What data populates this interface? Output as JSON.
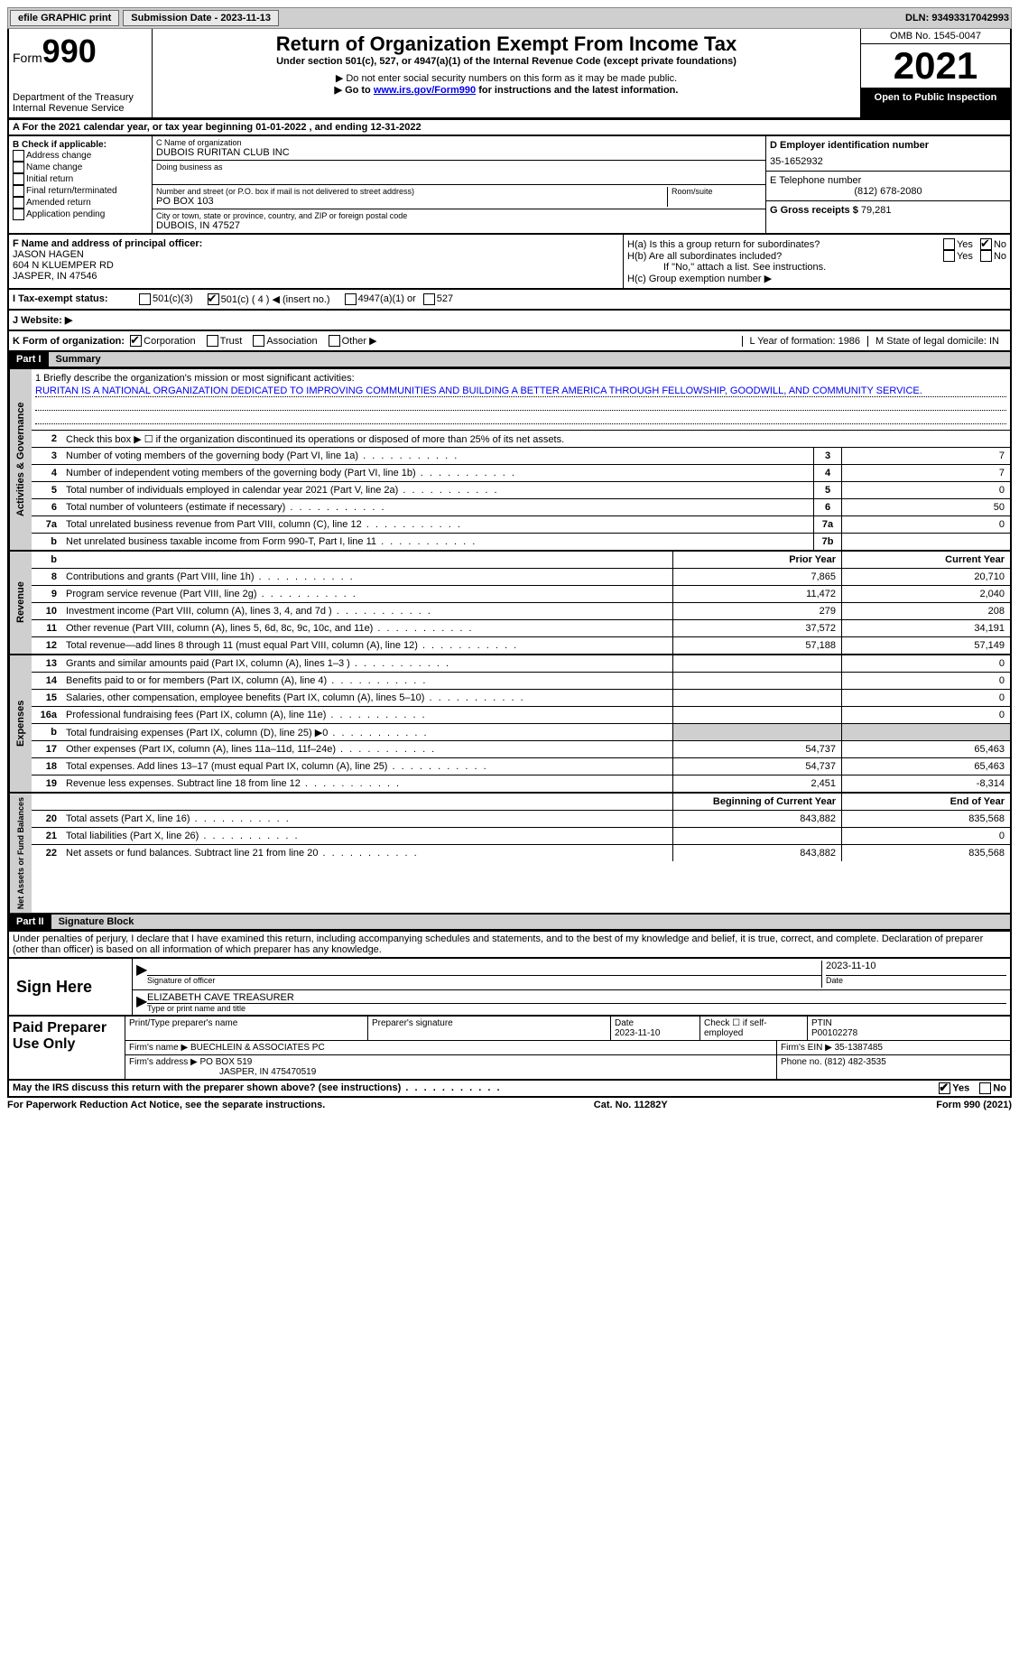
{
  "topbar": {
    "efile": "efile GRAPHIC print",
    "submission": "Submission Date - 2023-11-13",
    "dln": "DLN: 93493317042993"
  },
  "header": {
    "form": "Form",
    "num": "990",
    "title": "Return of Organization Exempt From Income Tax",
    "subtitle": "Under section 501(c), 527, or 4947(a)(1) of the Internal Revenue Code (except private foundations)",
    "note1": "▶ Do not enter social security numbers on this form as it may be made public.",
    "note2_pre": "▶ Go to ",
    "note2_link": "www.irs.gov/Form990",
    "note2_post": " for instructions and the latest information.",
    "dept": "Department of the Treasury\nInternal Revenue Service",
    "omb": "OMB No. 1545-0047",
    "year": "2021",
    "inspection": "Open to Public Inspection"
  },
  "rowA": "A For the 2021 calendar year, or tax year beginning 01-01-2022    , and ending 12-31-2022",
  "boxB": {
    "label": "B Check if applicable:",
    "opts": [
      "Address change",
      "Name change",
      "Initial return",
      "Final return/terminated",
      "Amended return",
      "Application pending"
    ]
  },
  "boxC": {
    "name_label": "C Name of organization",
    "name": "DUBOIS RURITAN CLUB INC",
    "dba_label": "Doing business as",
    "addr_label": "Number and street (or P.O. box if mail is not delivered to street address)",
    "addr": "PO BOX 103",
    "room_label": "Room/suite",
    "city_label": "City or town, state or province, country, and ZIP or foreign postal code",
    "city": "DUBOIS, IN  47527"
  },
  "boxD": {
    "d_label": "D Employer identification number",
    "d_val": "35-1652932",
    "e_label": "E Telephone number",
    "e_val": "(812) 678-2080",
    "g_label": "G Gross receipts $",
    "g_val": "79,281"
  },
  "boxF": {
    "label": "F Name and address of principal officer:",
    "name": "JASON HAGEN",
    "addr1": "604 N KLUEMPER RD",
    "addr2": "JASPER, IN  47546"
  },
  "boxH": {
    "ha": "H(a)  Is this a group return for subordinates?",
    "hb": "H(b)  Are all subordinates included?",
    "hb_note": "If \"No,\" attach a list. See instructions.",
    "hc": "H(c)  Group exemption number ▶",
    "yes": "Yes",
    "no": "No"
  },
  "rowI": {
    "label": "I  Tax-exempt status:",
    "opt1": "501(c)(3)",
    "opt2": "501(c) ( 4 ) ◀ (insert no.)",
    "opt3": "4947(a)(1) or",
    "opt4": "527"
  },
  "rowJ": "J  Website: ▶",
  "rowK": {
    "label": "K Form of organization:",
    "opts": [
      "Corporation",
      "Trust",
      "Association",
      "Other ▶"
    ],
    "l": "L Year of formation: 1986",
    "m": "M State of legal domicile: IN"
  },
  "part1": {
    "header": "Part I",
    "title": "Summary",
    "mission_label": "1  Briefly describe the organization's mission or most significant activities:",
    "mission": "RURITAN IS A NATIONAL ORGANIZATION DEDICATED TO IMPROVING COMMUNITIES AND BUILDING A BETTER AMERICA THROUGH FELLOWSHIP, GOODWILL, AND COMMUNITY SERVICE.",
    "line2": "Check this box ▶ ☐  if the organization discontinued its operations or disposed of more than 25% of its net assets.",
    "prior_header": "Prior Year",
    "current_header": "Current Year",
    "begin_header": "Beginning of Current Year",
    "end_header": "End of Year"
  },
  "sides": {
    "gov": "Activities & Governance",
    "rev": "Revenue",
    "exp": "Expenses",
    "net": "Net Assets or Fund Balances"
  },
  "gov_lines": [
    {
      "n": "3",
      "t": "Number of voting members of the governing body (Part VI, line 1a)",
      "box": "3",
      "v": "7"
    },
    {
      "n": "4",
      "t": "Number of independent voting members of the governing body (Part VI, line 1b)",
      "box": "4",
      "v": "7"
    },
    {
      "n": "5",
      "t": "Total number of individuals employed in calendar year 2021 (Part V, line 2a)",
      "box": "5",
      "v": "0"
    },
    {
      "n": "6",
      "t": "Total number of volunteers (estimate if necessary)",
      "box": "6",
      "v": "50"
    },
    {
      "n": "7a",
      "t": "Total unrelated business revenue from Part VIII, column (C), line 12",
      "box": "7a",
      "v": "0"
    },
    {
      "n": "b",
      "t": "Net unrelated business taxable income from Form 990-T, Part I, line 11",
      "box": "7b",
      "v": ""
    }
  ],
  "rev_lines": [
    {
      "n": "8",
      "t": "Contributions and grants (Part VIII, line 1h)",
      "p": "7,865",
      "c": "20,710"
    },
    {
      "n": "9",
      "t": "Program service revenue (Part VIII, line 2g)",
      "p": "11,472",
      "c": "2,040"
    },
    {
      "n": "10",
      "t": "Investment income (Part VIII, column (A), lines 3, 4, and 7d )",
      "p": "279",
      "c": "208"
    },
    {
      "n": "11",
      "t": "Other revenue (Part VIII, column (A), lines 5, 6d, 8c, 9c, 10c, and 11e)",
      "p": "37,572",
      "c": "34,191"
    },
    {
      "n": "12",
      "t": "Total revenue—add lines 8 through 11 (must equal Part VIII, column (A), line 12)",
      "p": "57,188",
      "c": "57,149"
    }
  ],
  "exp_lines": [
    {
      "n": "13",
      "t": "Grants and similar amounts paid (Part IX, column (A), lines 1–3 )",
      "p": "",
      "c": "0"
    },
    {
      "n": "14",
      "t": "Benefits paid to or for members (Part IX, column (A), line 4)",
      "p": "",
      "c": "0"
    },
    {
      "n": "15",
      "t": "Salaries, other compensation, employee benefits (Part IX, column (A), lines 5–10)",
      "p": "",
      "c": "0"
    },
    {
      "n": "16a",
      "t": "Professional fundraising fees (Part IX, column (A), line 11e)",
      "p": "",
      "c": "0"
    },
    {
      "n": "b",
      "t": "Total fundraising expenses (Part IX, column (D), line 25) ▶0",
      "p": "shaded",
      "c": "shaded"
    },
    {
      "n": "17",
      "t": "Other expenses (Part IX, column (A), lines 11a–11d, 11f–24e)",
      "p": "54,737",
      "c": "65,463"
    },
    {
      "n": "18",
      "t": "Total expenses. Add lines 13–17 (must equal Part IX, column (A), line 25)",
      "p": "54,737",
      "c": "65,463"
    },
    {
      "n": "19",
      "t": "Revenue less expenses. Subtract line 18 from line 12",
      "p": "2,451",
      "c": "-8,314"
    }
  ],
  "net_lines": [
    {
      "n": "20",
      "t": "Total assets (Part X, line 16)",
      "p": "843,882",
      "c": "835,568"
    },
    {
      "n": "21",
      "t": "Total liabilities (Part X, line 26)",
      "p": "",
      "c": "0"
    },
    {
      "n": "22",
      "t": "Net assets or fund balances. Subtract line 21 from line 20",
      "p": "843,882",
      "c": "835,568"
    }
  ],
  "part2": {
    "header": "Part II",
    "title": "Signature Block",
    "declaration": "Under penalties of perjury, I declare that I have examined this return, including accompanying schedules and statements, and to the best of my knowledge and belief, it is true, correct, and complete. Declaration of preparer (other than officer) is based on all information of which preparer has any knowledge."
  },
  "sign": {
    "label": "Sign Here",
    "sig_label": "Signature of officer",
    "date": "2023-11-10",
    "date_label": "Date",
    "name": "ELIZABETH CAVE TREASURER",
    "name_label": "Type or print name and title"
  },
  "prep": {
    "label": "Paid Preparer Use Only",
    "print_label": "Print/Type preparer's name",
    "sig_label": "Preparer's signature",
    "date_label": "Date",
    "date": "2023-11-10",
    "check_label": "Check ☐ if self-employed",
    "ptin_label": "PTIN",
    "ptin": "P00102278",
    "firm_name_label": "Firm's name    ▶",
    "firm_name": "BUECHLEIN & ASSOCIATES PC",
    "firm_ein_label": "Firm's EIN ▶",
    "firm_ein": "35-1387485",
    "firm_addr_label": "Firm's address ▶",
    "firm_addr": "PO BOX 519",
    "firm_city": "JASPER, IN  475470519",
    "phone_label": "Phone no.",
    "phone": "(812) 482-3535"
  },
  "footer": {
    "discuss": "May the IRS discuss this return with the preparer shown above? (see instructions)",
    "yes": "Yes",
    "no": "No",
    "paperwork": "For Paperwork Reduction Act Notice, see the separate instructions.",
    "cat": "Cat. No. 11282Y",
    "form": "Form 990 (2021)"
  }
}
